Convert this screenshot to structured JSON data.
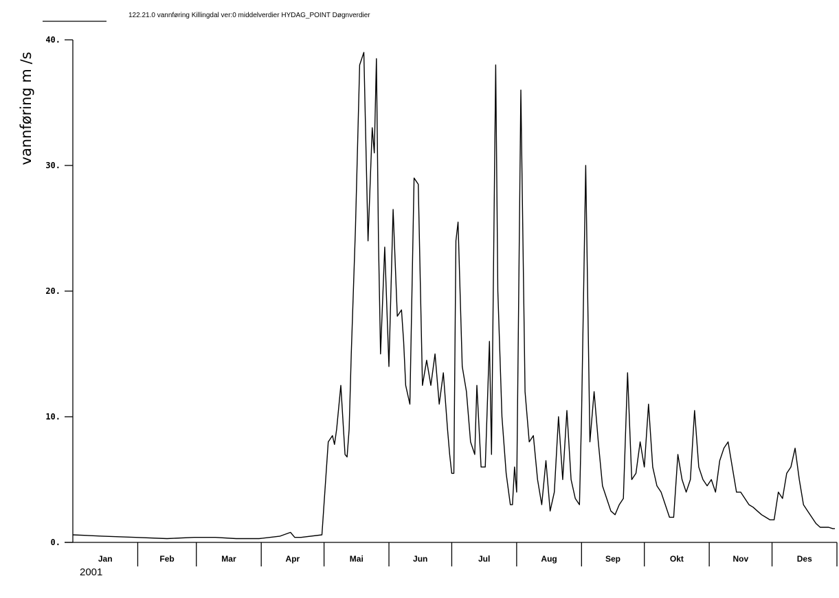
{
  "chart_data": {
    "type": "line",
    "title": "122.21.0 vannføring Killingdal ver:0 middelverdier HYDAG_POINT Døgnverdier",
    "ylabel": "vannføring  m  /s",
    "year_label": "2001",
    "ylim": [
      0,
      40
    ],
    "y_ticks": [
      {
        "value": 0,
        "label": "0."
      },
      {
        "value": 10,
        "label": "10."
      },
      {
        "value": 20,
        "label": "20."
      },
      {
        "value": 30,
        "label": "30."
      },
      {
        "value": 40,
        "label": "40."
      }
    ],
    "months": [
      "Jan",
      "Feb",
      "Mar",
      "Apr",
      "Mai",
      "Jun",
      "Jul",
      "Aug",
      "Sep",
      "Okt",
      "Nov",
      "Des"
    ],
    "series": [
      {
        "x": [
          "2001-01-01",
          "2001-01-15",
          "2001-01-31",
          "2001-02-15",
          "2001-02-28",
          "2001-03-10",
          "2001-03-20",
          "2001-03-31",
          "2001-04-10",
          "2001-04-15",
          "2001-04-17",
          "2001-04-20",
          "2001-04-30",
          "2001-05-03",
          "2001-05-05",
          "2001-05-06",
          "2001-05-07",
          "2001-05-09",
          "2001-05-11",
          "2001-05-12",
          "2001-05-13",
          "2001-05-14",
          "2001-05-16",
          "2001-05-18",
          "2001-05-20",
          "2001-05-22",
          "2001-05-24",
          "2001-05-25",
          "2001-05-26",
          "2001-05-27",
          "2001-05-28",
          "2001-05-30",
          "2001-06-01",
          "2001-06-03",
          "2001-06-05",
          "2001-06-07",
          "2001-06-08",
          "2001-06-09",
          "2001-06-11",
          "2001-06-13",
          "2001-06-15",
          "2001-06-17",
          "2001-06-19",
          "2001-06-21",
          "2001-06-23",
          "2001-06-25",
          "2001-06-27",
          "2001-06-29",
          "2001-06-30",
          "2001-07-01",
          "2001-07-02",
          "2001-07-03",
          "2001-07-04",
          "2001-07-06",
          "2001-07-08",
          "2001-07-10",
          "2001-07-12",
          "2001-07-13",
          "2001-07-15",
          "2001-07-17",
          "2001-07-19",
          "2001-07-20",
          "2001-07-22",
          "2001-07-23",
          "2001-07-25",
          "2001-07-27",
          "2001-07-29",
          "2001-07-30",
          "2001-07-31",
          "2001-08-01",
          "2001-08-03",
          "2001-08-05",
          "2001-08-07",
          "2001-08-09",
          "2001-08-11",
          "2001-08-13",
          "2001-08-15",
          "2001-08-17",
          "2001-08-19",
          "2001-08-21",
          "2001-08-23",
          "2001-08-25",
          "2001-08-27",
          "2001-08-29",
          "2001-08-31",
          "2001-09-01",
          "2001-09-03",
          "2001-09-05",
          "2001-09-07",
          "2001-09-09",
          "2001-09-11",
          "2001-09-13",
          "2001-09-15",
          "2001-09-17",
          "2001-09-19",
          "2001-09-21",
          "2001-09-23",
          "2001-09-25",
          "2001-09-27",
          "2001-09-29",
          "2001-10-01",
          "2001-10-03",
          "2001-10-05",
          "2001-10-07",
          "2001-10-09",
          "2001-10-11",
          "2001-10-13",
          "2001-10-15",
          "2001-10-17",
          "2001-10-19",
          "2001-10-21",
          "2001-10-23",
          "2001-10-25",
          "2001-10-27",
          "2001-10-29",
          "2001-10-31",
          "2001-11-02",
          "2001-11-04",
          "2001-11-06",
          "2001-11-08",
          "2001-11-10",
          "2001-11-12",
          "2001-11-14",
          "2001-11-16",
          "2001-11-18",
          "2001-11-20",
          "2001-11-22",
          "2001-11-24",
          "2001-11-26",
          "2001-11-28",
          "2001-11-30",
          "2001-12-02",
          "2001-12-04",
          "2001-12-06",
          "2001-12-08",
          "2001-12-10",
          "2001-12-12",
          "2001-12-14",
          "2001-12-16",
          "2001-12-18",
          "2001-12-20",
          "2001-12-22",
          "2001-12-24",
          "2001-12-26",
          "2001-12-28",
          "2001-12-30",
          "2001-12-31"
        ],
        "y": [
          0.6,
          0.5,
          0.4,
          0.3,
          0.4,
          0.4,
          0.3,
          0.3,
          0.5,
          0.8,
          0.4,
          0.4,
          0.6,
          8.0,
          8.5,
          7.8,
          9.0,
          12.5,
          7.0,
          6.8,
          9.0,
          15.0,
          25.0,
          38.0,
          39.0,
          24.0,
          33.0,
          31.0,
          38.5,
          24.0,
          15.0,
          23.5,
          14.0,
          26.5,
          18.0,
          18.5,
          16.0,
          12.5,
          11.0,
          29.0,
          28.5,
          12.5,
          14.5,
          12.5,
          15.0,
          11.0,
          13.5,
          9.0,
          7.0,
          5.5,
          5.5,
          24.0,
          25.5,
          14.0,
          12.0,
          8.0,
          7.0,
          12.5,
          6.0,
          6.0,
          16.0,
          7.0,
          38.0,
          20.0,
          10.0,
          5.5,
          3.0,
          3.0,
          6.0,
          4.0,
          36.0,
          12.0,
          8.0,
          8.5,
          5.0,
          3.0,
          6.5,
          2.5,
          4.0,
          10.0,
          5.0,
          10.5,
          5.0,
          3.5,
          3.0,
          10.0,
          30.0,
          8.0,
          12.0,
          8.0,
          4.5,
          3.5,
          2.5,
          2.2,
          3.0,
          3.5,
          13.5,
          5.0,
          5.5,
          8.0,
          6.0,
          11.0,
          6.0,
          4.5,
          4.0,
          3.0,
          2.0,
          2.0,
          7.0,
          5.0,
          4.0,
          5.0,
          10.5,
          6.0,
          5.0,
          4.5,
          5.0,
          4.0,
          6.5,
          7.5,
          8.0,
          6.0,
          4.0,
          4.0,
          3.5,
          3.0,
          2.8,
          2.5,
          2.2,
          2.0,
          1.8,
          1.8,
          4.0,
          3.5,
          5.5,
          6.0,
          7.5,
          5.0,
          3.0,
          2.5,
          2.0,
          1.5,
          1.2,
          1.2,
          1.2,
          1.1,
          1.1
        ]
      }
    ],
    "grid": false,
    "legend": "top-left, line sample followed by series title"
  }
}
